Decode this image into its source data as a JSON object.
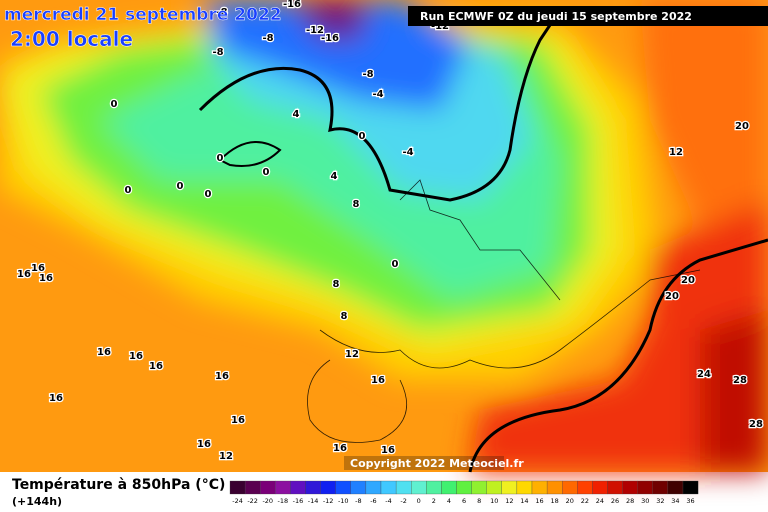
{
  "header": {
    "date": "mercredi 21 septembre 2022",
    "time": "2:00 locale",
    "run": "Run ECMWF 0Z du jeudi 15 septembre 2022"
  },
  "copyright": "Copyright 2022 Meteociel.fr",
  "legend": {
    "title": "Température à 850hPa (°C)",
    "lead": "(+144h)",
    "scale_values": [
      -24,
      -22,
      -20,
      -18,
      -16,
      -14,
      -12,
      -10,
      -8,
      -6,
      -4,
      -2,
      0,
      2,
      4,
      6,
      8,
      10,
      12,
      14,
      16,
      18,
      20,
      22,
      24,
      26,
      28,
      30,
      32,
      34,
      36
    ],
    "scale_colors": [
      "#3a0030",
      "#5a0050",
      "#7a0078",
      "#8c10a0",
      "#6010c0",
      "#3018d8",
      "#1020f0",
      "#1050ff",
      "#2080ff",
      "#30a8ff",
      "#40c8ff",
      "#50e0f0",
      "#60f0d0",
      "#50f0a0",
      "#40f070",
      "#60f040",
      "#90f030",
      "#c0f020",
      "#f0f020",
      "#ffd800",
      "#ffb000",
      "#ff9000",
      "#ff6800",
      "#ff4000",
      "#f02000",
      "#d01000",
      "#b00000",
      "#900000",
      "#700000",
      "#400000",
      "#000000"
    ]
  },
  "map_labels": [
    -16,
    -8,
    -8,
    -8,
    -12,
    -16,
    -12,
    -8,
    -4,
    -4,
    0,
    4,
    0,
    0,
    0,
    0,
    0,
    0,
    4,
    8,
    0,
    8,
    8,
    12,
    16,
    16,
    16,
    16,
    16,
    16,
    16,
    16,
    16,
    16,
    16,
    16,
    16,
    12,
    20,
    12,
    20,
    20,
    24,
    28,
    28
  ]
}
